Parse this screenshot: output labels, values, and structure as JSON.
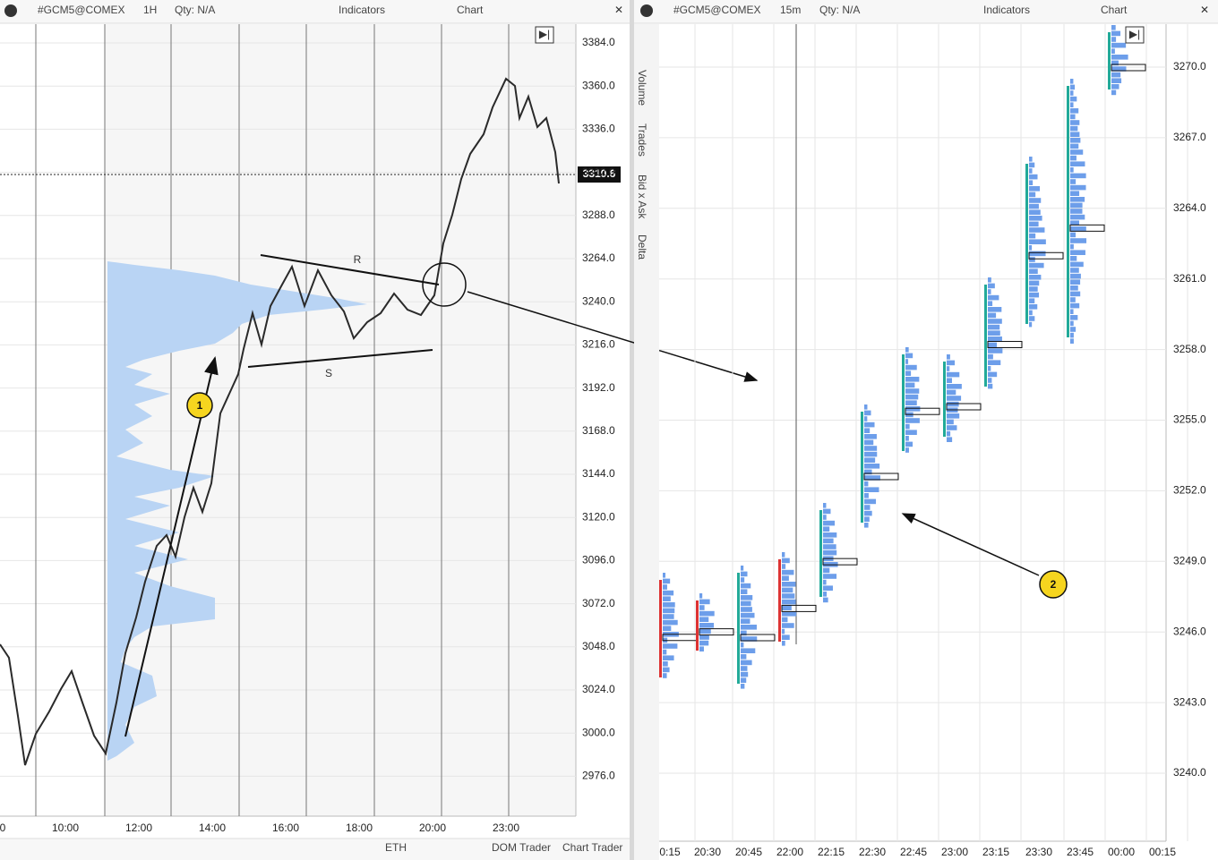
{
  "left_panel": {
    "toolbar": {
      "symbol": "#GCM5@COMEX",
      "interval": "1H",
      "qty": "Qty: N/A",
      "indicators": "Indicators",
      "chart": "Chart"
    },
    "price_ticks": [
      "3384.0",
      "3360.0",
      "3336.0",
      "3312.0",
      "3288.0",
      "3264.0",
      "3240.0",
      "3216.0",
      "3192.0",
      "3168.0",
      "3144.0",
      "3120.0",
      "3096.0",
      "3072.0",
      "3048.0",
      "3024.0",
      "3000.0",
      "2976.0"
    ],
    "current_price": "3310.6",
    "time_labels": [
      "0",
      "10:00",
      "12:00",
      "14:00",
      "16:00",
      "18:00",
      "20:00",
      "23:00"
    ],
    "annotations": {
      "resistance": "R",
      "support": "S",
      "marker": "1"
    },
    "footer": {
      "session": "ETH",
      "dom_trader": "DOM Trader",
      "chart_trader": "Chart Trader"
    }
  },
  "right_panel": {
    "toolbar": {
      "symbol": "#GCM5@COMEX",
      "interval": "15m",
      "qty": "Qty: N/A",
      "indicators": "Indicators",
      "chart": "Chart"
    },
    "tabs": [
      "Volume",
      "Trades",
      "Bid x Ask",
      "Delta"
    ],
    "price_ticks": [
      "3270.0",
      "3267.0",
      "3264.0",
      "3261.0",
      "3258.0",
      "3255.0",
      "3252.0",
      "3249.0",
      "3246.0",
      "3243.0",
      "3240.0"
    ],
    "time_labels": [
      "0:15",
      "20:30",
      "20:45",
      "22:00",
      "22:15",
      "22:30",
      "22:45",
      "23:00",
      "23:15",
      "23:30",
      "23:45",
      "00:00",
      "00:15"
    ],
    "marker": "2"
  }
}
